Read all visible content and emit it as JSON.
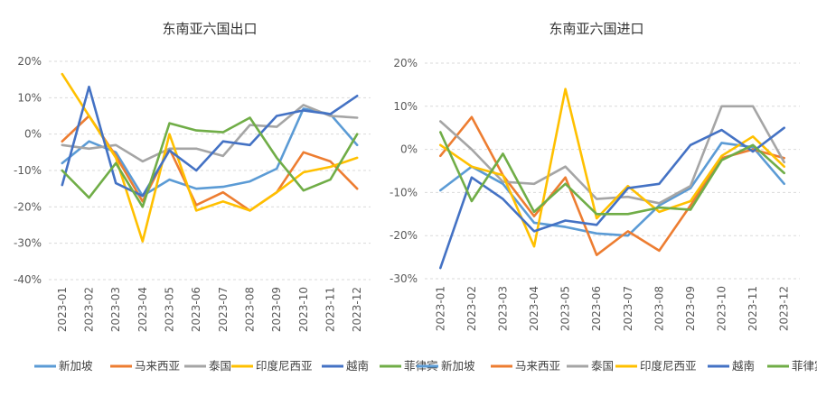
{
  "chart_data": [
    {
      "type": "line",
      "title": "东南亚六国出口",
      "categories": [
        "2023-01",
        "2023-02",
        "2023-03",
        "2023-04",
        "2023-05",
        "2023-06",
        "2023-07",
        "2023-08",
        "2023-09",
        "2023-10",
        "2023-11",
        "2023-12"
      ],
      "ylim": [
        -0.4,
        0.2
      ],
      "yticks": [
        "20%",
        "10%",
        "0%",
        "-10%",
        "-20%",
        "-30%",
        "-40%"
      ],
      "grid": "horizontal dashed",
      "legend": "bottom",
      "series": [
        {
          "name": "新加坡",
          "color": "#5b9bd5",
          "values": [
            -0.08,
            -0.02,
            -0.05,
            -0.17,
            -0.125,
            -0.15,
            -0.145,
            -0.13,
            -0.095,
            0.07,
            0.055,
            -0.03
          ]
        },
        {
          "name": "马来西亚",
          "color": "#ed7d31",
          "values": [
            -0.02,
            0.05,
            -0.06,
            -0.185,
            -0.04,
            -0.195,
            -0.16,
            -0.21,
            -0.16,
            -0.05,
            -0.075,
            -0.15
          ]
        },
        {
          "name": "泰国",
          "color": "#a5a5a5",
          "values": [
            -0.03,
            -0.04,
            -0.03,
            -0.075,
            -0.04,
            -0.04,
            -0.06,
            0.025,
            0.02,
            0.08,
            0.05,
            0.045
          ]
        },
        {
          "name": "印度尼西亚",
          "color": "#ffc000",
          "values": [
            0.165,
            0.05,
            -0.065,
            -0.295,
            0.0,
            -0.21,
            -0.185,
            -0.21,
            -0.16,
            -0.105,
            -0.09,
            -0.065
          ]
        },
        {
          "name": "越南",
          "color": "#4472c4",
          "values": [
            -0.14,
            0.13,
            -0.135,
            -0.17,
            -0.045,
            -0.1,
            -0.02,
            -0.03,
            0.05,
            0.065,
            0.055,
            0.105
          ]
        },
        {
          "name": "菲律宾",
          "color": "#70ad47",
          "values": [
            -0.1,
            -0.175,
            -0.08,
            -0.2,
            0.03,
            0.01,
            0.005,
            0.045,
            -0.065,
            -0.155,
            -0.125,
            0.0
          ]
        }
      ]
    },
    {
      "type": "line",
      "title": "东南亚六国进口",
      "categories": [
        "2023-01",
        "2023-02",
        "2023-03",
        "2023-04",
        "2023-05",
        "2023-06",
        "2023-07",
        "2023-08",
        "2023-09",
        "2023-10",
        "2023-11",
        "2023-12"
      ],
      "ylim": [
        -0.3,
        0.2
      ],
      "yticks": [
        "20%",
        "10%",
        "0%",
        "-10%",
        "-20%",
        "-30%"
      ],
      "grid": "horizontal dashed",
      "legend": "bottom",
      "series": [
        {
          "name": "新加坡",
          "color": "#5b9bd5",
          "values": [
            -0.095,
            -0.04,
            -0.08,
            -0.17,
            -0.18,
            -0.195,
            -0.2,
            -0.13,
            -0.09,
            0.015,
            0.005,
            -0.08
          ]
        },
        {
          "name": "马来西亚",
          "color": "#ed7d31",
          "values": [
            -0.015,
            0.075,
            -0.06,
            -0.155,
            -0.065,
            -0.245,
            -0.19,
            -0.235,
            -0.13,
            -0.02,
            0.0,
            -0.02
          ]
        },
        {
          "name": "泰国",
          "color": "#a5a5a5",
          "values": [
            0.065,
            0.0,
            -0.075,
            -0.08,
            -0.04,
            -0.115,
            -0.11,
            -0.125,
            -0.085,
            0.1,
            0.1,
            -0.03
          ]
        },
        {
          "name": "印度尼西亚",
          "color": "#ffc000",
          "values": [
            0.01,
            -0.04,
            -0.06,
            -0.225,
            0.14,
            -0.16,
            -0.085,
            -0.145,
            -0.12,
            -0.015,
            0.03,
            -0.04
          ]
        },
        {
          "name": "越南",
          "color": "#4472c4",
          "values": [
            -0.275,
            -0.065,
            -0.115,
            -0.19,
            -0.165,
            -0.175,
            -0.09,
            -0.08,
            0.01,
            0.045,
            -0.005,
            0.05
          ]
        },
        {
          "name": "菲律宾",
          "color": "#70ad47",
          "values": [
            0.04,
            -0.12,
            -0.01,
            -0.145,
            -0.08,
            -0.15,
            -0.15,
            -0.135,
            -0.14,
            -0.025,
            0.01,
            -0.055
          ]
        }
      ]
    }
  ]
}
